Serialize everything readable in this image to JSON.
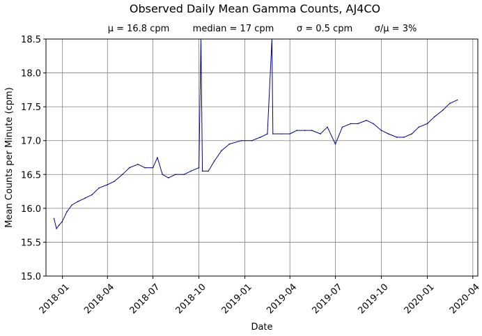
{
  "chart_data": {
    "type": "line",
    "title": "Observed Daily Mean Gamma Counts, AJ4CO",
    "subtitle": {
      "mean": "μ = 16.8 cpm",
      "median": "median = 17 cpm",
      "sigma": "σ = 0.5 cpm",
      "ratio": "σ/μ = 3%"
    },
    "xlabel": "Date",
    "ylabel": "Mean Counts per Minute (cpm)",
    "ylim": [
      15.0,
      18.5
    ],
    "xlim": [
      "2017-11-29",
      "2020-04-11"
    ],
    "grid": true,
    "x_ticks": [
      "2018-01",
      "2018-04",
      "2018-07",
      "2018-10",
      "2019-01",
      "2019-04",
      "2019-07",
      "2019-10",
      "2020-01",
      "2020-04"
    ],
    "y_ticks": [
      "15.0",
      "15.5",
      "16.0",
      "16.5",
      "17.0",
      "17.5",
      "18.0",
      "18.5"
    ],
    "line_color": "#00008b",
    "series": [
      {
        "points": [
          [
            "2017-12-15",
            15.85
          ],
          [
            "2017-12-20",
            15.7
          ],
          [
            "2017-12-25",
            15.75
          ],
          [
            "2017-12-31",
            15.8
          ],
          [
            "2018-01-10",
            15.95
          ],
          [
            "2018-01-20",
            16.05
          ],
          [
            "2018-02-01",
            16.1
          ],
          [
            "2018-02-15",
            16.15
          ],
          [
            "2018-03-01",
            16.2
          ],
          [
            "2018-03-15",
            16.3
          ],
          [
            "2018-04-01",
            16.35
          ],
          [
            "2018-04-15",
            16.4
          ],
          [
            "2018-05-01",
            16.5
          ],
          [
            "2018-05-15",
            16.6
          ],
          [
            "2018-06-01",
            16.65
          ],
          [
            "2018-06-15",
            16.6
          ],
          [
            "2018-07-01",
            16.6
          ],
          [
            "2018-07-10",
            16.75
          ],
          [
            "2018-07-20",
            16.5
          ],
          [
            "2018-08-01",
            16.45
          ],
          [
            "2018-08-15",
            16.5
          ],
          [
            "2018-09-01",
            16.5
          ],
          [
            "2018-09-15",
            16.55
          ],
          [
            "2018-10-01",
            16.6
          ],
          [
            "2018-10-05",
            18.5
          ],
          [
            "2018-10-08",
            16.55
          ],
          [
            "2018-10-20",
            16.55
          ],
          [
            "2018-11-01",
            16.7
          ],
          [
            "2018-11-15",
            16.85
          ],
          [
            "2018-12-01",
            16.95
          ],
          [
            "2018-12-25",
            17.0
          ],
          [
            "2019-01-15",
            17.0
          ],
          [
            "2019-02-01",
            17.05
          ],
          [
            "2019-02-15",
            17.1
          ],
          [
            "2019-02-24",
            18.5
          ],
          [
            "2019-02-26",
            17.1
          ],
          [
            "2019-03-15",
            17.1
          ],
          [
            "2019-04-01",
            17.1
          ],
          [
            "2019-04-15",
            17.15
          ],
          [
            "2019-05-01",
            17.15
          ],
          [
            "2019-05-15",
            17.15
          ],
          [
            "2019-06-01",
            17.1
          ],
          [
            "2019-06-15",
            17.2
          ],
          [
            "2019-07-01",
            16.95
          ],
          [
            "2019-07-15",
            17.2
          ],
          [
            "2019-08-01",
            17.25
          ],
          [
            "2019-08-15",
            17.25
          ],
          [
            "2019-09-01",
            17.3
          ],
          [
            "2019-09-15",
            17.25
          ],
          [
            "2019-10-01",
            17.15
          ],
          [
            "2019-10-15",
            17.1
          ],
          [
            "2019-11-01",
            17.05
          ],
          [
            "2019-11-15",
            17.05
          ],
          [
            "2019-12-01",
            17.1
          ],
          [
            "2019-12-15",
            17.2
          ],
          [
            "2020-01-01",
            17.25
          ],
          [
            "2020-01-15",
            17.35
          ],
          [
            "2020-02-01",
            17.45
          ],
          [
            "2020-02-15",
            17.55
          ],
          [
            "2020-03-01",
            17.6
          ]
        ]
      }
    ]
  }
}
